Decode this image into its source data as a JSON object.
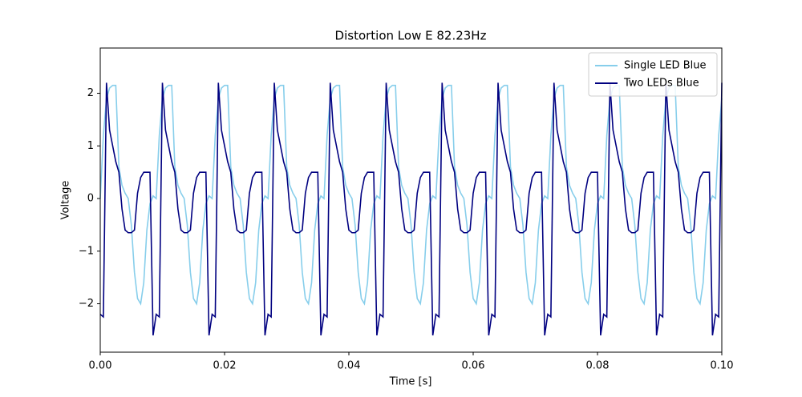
{
  "chart_data": {
    "type": "line",
    "title": "Distortion Low E 82.23Hz",
    "x_label": "Time [s]",
    "y_label": "Voltage",
    "x": [
      0,
      0.0005,
      0.001,
      0.0015,
      0.002,
      0.0025,
      0.003,
      0.0035,
      0.004,
      0.0045,
      0.005,
      0.0055,
      0.006,
      0.0065,
      0.007,
      0.0075,
      0.008,
      0.0085,
      0.009,
      0.0095,
      0.01,
      0.0105,
      0.011,
      0.0115,
      0.012,
      0.0125,
      0.013,
      0.0135,
      0.014,
      0.0145,
      0.015,
      0.0155,
      0.016,
      0.0165,
      0.017,
      0.0175,
      0.018,
      0.0185,
      0.019,
      0.0195,
      0.02,
      0.0205,
      0.021,
      0.0215,
      0.022,
      0.0225,
      0.023,
      0.0235,
      0.024,
      0.0245,
      0.025,
      0.0255,
      0.026,
      0.0265,
      0.027,
      0.0275,
      0.028,
      0.0285,
      0.029,
      0.0295,
      0.03,
      0.0305,
      0.031,
      0.0315,
      0.032,
      0.0325,
      0.033,
      0.0335,
      0.034,
      0.0345,
      0.035,
      0.0355,
      0.036,
      0.0365,
      0.037,
      0.0375,
      0.038,
      0.0385,
      0.039,
      0.0395,
      0.04,
      0.0405,
      0.041,
      0.0415,
      0.042,
      0.0425,
      0.043,
      0.0435,
      0.044,
      0.0445,
      0.045,
      0.0455,
      0.046,
      0.0465,
      0.047,
      0.0475,
      0.048,
      0.0485,
      0.049,
      0.0495,
      0.05,
      0.0505,
      0.051,
      0.0515,
      0.052,
      0.0525,
      0.053,
      0.0535,
      0.054,
      0.0545,
      0.055,
      0.0555,
      0.056,
      0.0565,
      0.057,
      0.0575,
      0.058,
      0.0585,
      0.059,
      0.0595,
      0.06,
      0.0605,
      0.061,
      0.0615,
      0.062,
      0.0625,
      0.063,
      0.0635,
      0.064,
      0.0645,
      0.065,
      0.0655,
      0.066,
      0.0665,
      0.067,
      0.0675,
      0.068,
      0.0685,
      0.069,
      0.0695,
      0.07,
      0.0705,
      0.071,
      0.0715,
      0.072,
      0.0725,
      0.073,
      0.0735,
      0.074,
      0.0745,
      0.075,
      0.0755,
      0.076,
      0.0765,
      0.077,
      0.0775,
      0.078,
      0.0785,
      0.079,
      0.0795,
      0.08,
      0.0805,
      0.081,
      0.0815,
      0.082,
      0.0825,
      0.083,
      0.0835,
      0.084,
      0.0845,
      0.085,
      0.0855,
      0.086,
      0.0865,
      0.087,
      0.0875,
      0.088,
      0.0885,
      0.089,
      0.0895,
      0.09,
      0.0905,
      0.091,
      0.0915,
      0.092,
      0.0925,
      0.093,
      0.0935,
      0.094,
      0.0945,
      0.095,
      0.0955,
      0.096,
      0.0965,
      0.097,
      0.0975,
      0.098,
      0.0985,
      0.099,
      0.0995,
      0.1
    ],
    "series": [
      {
        "name": "Single LED Blue",
        "color": "#87ceeb",
        "values": [
          0,
          1.2,
          1.9,
          2.1,
          2.15,
          2.15,
          0.6,
          0.25,
          0.1,
          0,
          -0.5,
          -1.4,
          -1.9,
          -2,
          -1.6,
          -0.6,
          -0.1,
          0.05,
          0,
          1.2,
          1.9,
          2.1,
          2.15,
          2.15,
          0.6,
          0.25,
          0.1,
          0,
          -0.5,
          -1.4,
          -1.9,
          -2,
          -1.6,
          -0.6,
          -0.1,
          0.05,
          0,
          1.2,
          1.9,
          2.1,
          2.15,
          2.15,
          0.6,
          0.25,
          0.1,
          0,
          -0.5,
          -1.4,
          -1.9,
          -2,
          -1.6,
          -0.6,
          -0.1,
          0.05,
          0,
          1.2,
          1.9,
          2.1,
          2.15,
          2.15,
          0.6,
          0.25,
          0.1,
          0,
          -0.5,
          -1.4,
          -1.9,
          -2,
          -1.6,
          -0.6,
          -0.1,
          0.05,
          0,
          1.2,
          1.9,
          2.1,
          2.15,
          2.15,
          0.6,
          0.25,
          0.1,
          0,
          -0.5,
          -1.4,
          -1.9,
          -2,
          -1.6,
          -0.6,
          -0.1,
          0.05,
          0,
          1.2,
          1.9,
          2.1,
          2.15,
          2.15,
          0.6,
          0.25,
          0.1,
          0,
          -0.5,
          -1.4,
          -1.9,
          -2,
          -1.6,
          -0.6,
          -0.1,
          0.05,
          0,
          1.2,
          1.9,
          2.1,
          2.15,
          2.15,
          0.6,
          0.25,
          0.1,
          0,
          -0.5,
          -1.4,
          -1.9,
          -2,
          -1.6,
          -0.6,
          -0.1,
          0.05,
          0,
          1.2,
          1.9,
          2.1,
          2.15,
          2.15,
          0.6,
          0.25,
          0.1,
          0,
          -0.5,
          -1.4,
          -1.9,
          -2,
          -1.6,
          -0.6,
          -0.1,
          0.05,
          0,
          1.2,
          1.9,
          2.1,
          2.15,
          2.15,
          0.6,
          0.25,
          0.1,
          0,
          -0.5,
          -1.4,
          -1.9,
          -2,
          -1.6,
          -0.6,
          -0.1,
          0.05,
          0,
          1.2,
          1.9,
          2.1,
          2.15,
          2.15,
          0.6,
          0.25,
          0.1,
          0,
          -0.5,
          -1.4,
          -1.9,
          -2,
          -1.6,
          -0.6,
          -0.1,
          0.05,
          0,
          1.2,
          1.9,
          2.1,
          2.15,
          2.15,
          0.6,
          0.25,
          0.1,
          0,
          -0.5,
          -1.4,
          -1.9,
          -2,
          -1.6,
          -0.6,
          -0.1,
          0.05,
          0,
          1.2,
          1.9
        ]
      },
      {
        "name": "Two LEDs Blue",
        "color": "#000080",
        "values": [
          -2.2,
          -2.25,
          2.2,
          1.3,
          1,
          0.7,
          0.5,
          -0.2,
          -0.6,
          -0.65,
          -0.65,
          -0.6,
          0.1,
          0.4,
          0.5,
          0.5,
          0.5,
          -2.6,
          -2.2,
          -2.25,
          2.2,
          1.3,
          1,
          0.7,
          0.5,
          -0.2,
          -0.6,
          -0.65,
          -0.65,
          -0.6,
          0.1,
          0.4,
          0.5,
          0.5,
          0.5,
          -2.6,
          -2.2,
          -2.25,
          2.2,
          1.3,
          1,
          0.7,
          0.5,
          -0.2,
          -0.6,
          -0.65,
          -0.65,
          -0.6,
          0.1,
          0.4,
          0.5,
          0.5,
          0.5,
          -2.6,
          -2.2,
          -2.25,
          2.2,
          1.3,
          1,
          0.7,
          0.5,
          -0.2,
          -0.6,
          -0.65,
          -0.65,
          -0.6,
          0.1,
          0.4,
          0.5,
          0.5,
          0.5,
          -2.6,
          -2.2,
          -2.25,
          2.2,
          1.3,
          1,
          0.7,
          0.5,
          -0.2,
          -0.6,
          -0.65,
          -0.65,
          -0.6,
          0.1,
          0.4,
          0.5,
          0.5,
          0.5,
          -2.6,
          -2.2,
          -2.25,
          2.2,
          1.3,
          1,
          0.7,
          0.5,
          -0.2,
          -0.6,
          -0.65,
          -0.65,
          -0.6,
          0.1,
          0.4,
          0.5,
          0.5,
          0.5,
          -2.6,
          -2.2,
          -2.25,
          2.2,
          1.3,
          1,
          0.7,
          0.5,
          -0.2,
          -0.6,
          -0.65,
          -0.65,
          -0.6,
          0.1,
          0.4,
          0.5,
          0.5,
          0.5,
          -2.6,
          -2.2,
          -2.25,
          2.2,
          1.3,
          1,
          0.7,
          0.5,
          -0.2,
          -0.6,
          -0.65,
          -0.65,
          -0.6,
          0.1,
          0.4,
          0.5,
          0.5,
          0.5,
          -2.6,
          -2.2,
          -2.25,
          2.2,
          1.3,
          1,
          0.7,
          0.5,
          -0.2,
          -0.6,
          -0.65,
          -0.65,
          -0.6,
          0.1,
          0.4,
          0.5,
          0.5,
          0.5,
          -2.6,
          -2.2,
          -2.25,
          2.2,
          1.3,
          1,
          0.7,
          0.5,
          -0.2,
          -0.6,
          -0.65,
          -0.65,
          -0.6,
          0.1,
          0.4,
          0.5,
          0.5,
          0.5,
          -2.6,
          -2.2,
          -2.25,
          2.2,
          1.3,
          1,
          0.7,
          0.5,
          -0.2,
          -0.6,
          -0.65,
          -0.65,
          -0.6,
          0.1,
          0.4,
          0.5,
          0.5,
          0.5,
          -2.6,
          -2.2,
          -2.25,
          2.2
        ]
      }
    ],
    "xlim": [
      0,
      0.1
    ],
    "xticks": [
      {
        "value": 0,
        "label": "0.00"
      },
      {
        "value": 0.02,
        "label": "0.02"
      },
      {
        "value": 0.04,
        "label": "0.04"
      },
      {
        "value": 0.06,
        "label": "0.06"
      },
      {
        "value": 0.08,
        "label": "0.08"
      },
      {
        "value": 0.1,
        "label": "0.10"
      }
    ],
    "ylim": [
      -2.92,
      2.86
    ],
    "yticks": [
      {
        "value": -2,
        "label": "−2"
      },
      {
        "value": -1,
        "label": "−1"
      },
      0,
      1,
      2
    ],
    "grid": false,
    "legend": "upper right"
  }
}
